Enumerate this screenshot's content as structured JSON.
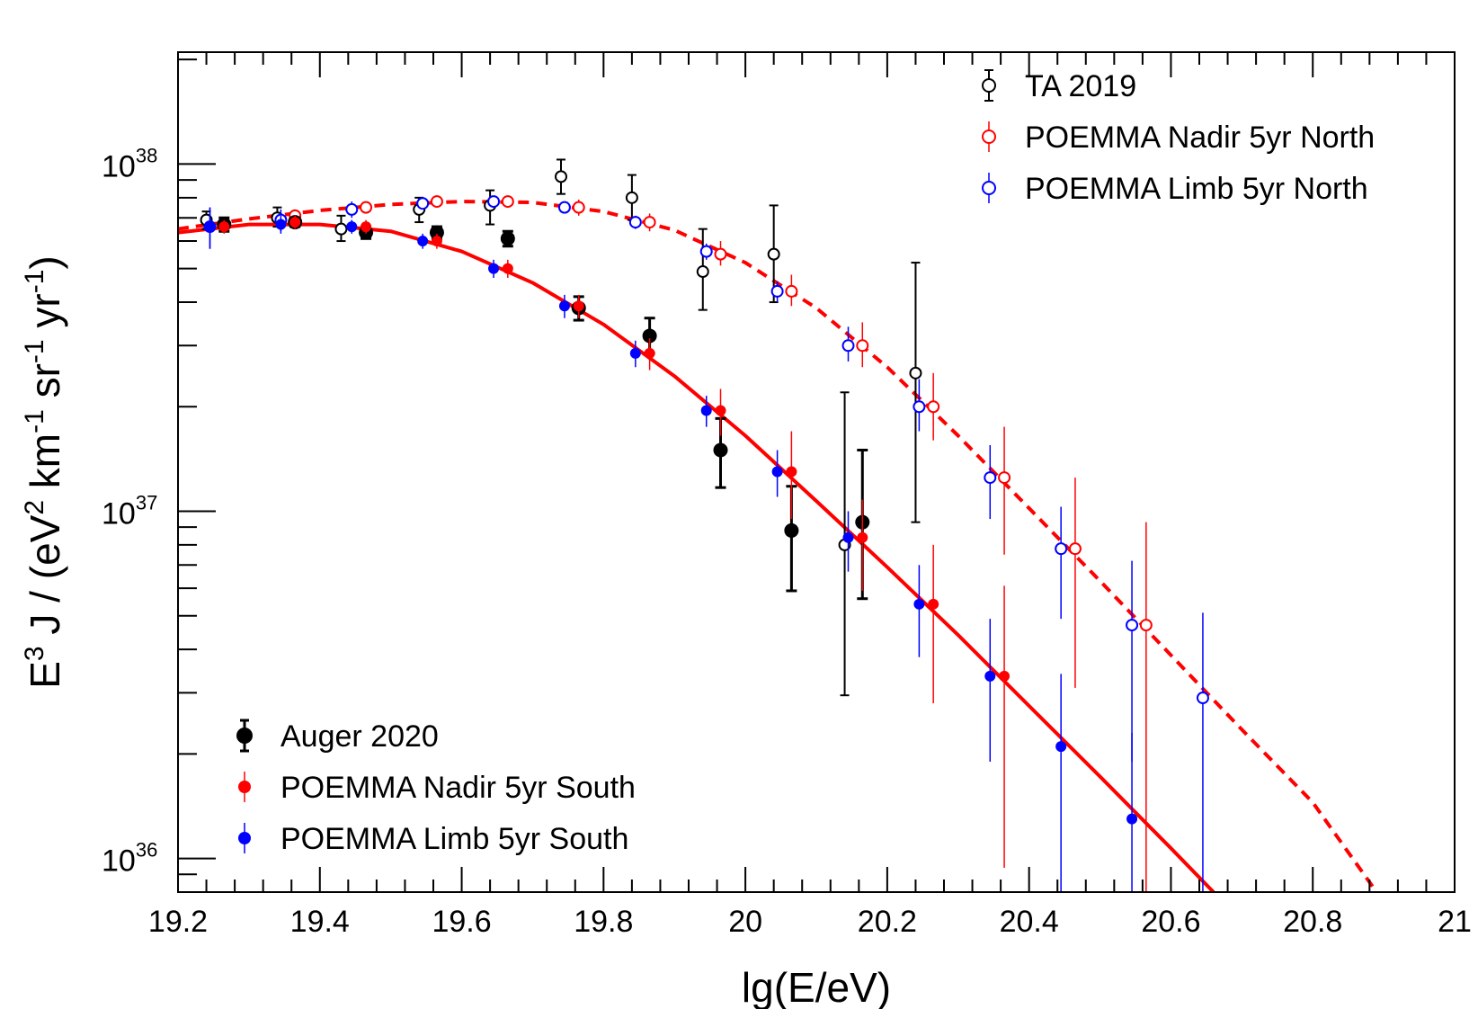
{
  "chart_data": {
    "type": "scatter",
    "title": "",
    "xlabel": "lg(E/eV)",
    "ylabel": {
      "prefix": "E",
      "prefix_sup": "3",
      "middle": " J / (eV",
      "sup1": "2",
      "km": " km",
      "sup2": "-1",
      "sr": " sr",
      "sup3": "-1",
      "yr": " yr",
      "sup4": "-1",
      "close": ")"
    },
    "xlim": [
      19.2,
      21.0
    ],
    "ylim": [
      8e+35,
      2.1e+38
    ],
    "yscale": "log",
    "xticks": [
      {
        "value": 19.2,
        "label": "19.2"
      },
      {
        "value": 19.4,
        "label": "19.4"
      },
      {
        "value": 19.6,
        "label": "19.6"
      },
      {
        "value": 19.8,
        "label": "19.8"
      },
      {
        "value": 20.0,
        "label": "20"
      },
      {
        "value": 20.2,
        "label": "20.2"
      },
      {
        "value": 20.4,
        "label": "20.4"
      },
      {
        "value": 20.6,
        "label": "20.6"
      },
      {
        "value": 20.8,
        "label": "20.8"
      },
      {
        "value": 21.0,
        "label": "21"
      }
    ],
    "yticks": [
      {
        "value": 1e+36,
        "base": "10",
        "exp": "36"
      },
      {
        "value": 1e+37,
        "base": "10",
        "exp": "37"
      },
      {
        "value": 1e+38,
        "base": "10",
        "exp": "38"
      }
    ],
    "colors": {
      "black": "#000000",
      "red": "#ff0000",
      "blue": "#0000ff"
    },
    "series": [
      {
        "name": "TA 2019",
        "color": "#000000",
        "marker": "open",
        "size": 6,
        "lw": 2,
        "points": [
          {
            "x": 19.24,
            "y": 6.9e+37,
            "lo": 6.5e+37,
            "hi": 7.3e+37
          },
          {
            "x": 19.34,
            "y": 7e+37,
            "lo": 6.6e+37,
            "hi": 7.5e+37
          },
          {
            "x": 19.43,
            "y": 6.5e+37,
            "lo": 6e+37,
            "hi": 7.1e+37
          },
          {
            "x": 19.54,
            "y": 7.4e+37,
            "lo": 6.8e+37,
            "hi": 8e+37
          },
          {
            "x": 19.64,
            "y": 7.6e+37,
            "lo": 6.7e+37,
            "hi": 8.4e+37
          },
          {
            "x": 19.74,
            "y": 9.2e+37,
            "lo": 8.2e+37,
            "hi": 1.03e+38
          },
          {
            "x": 19.84,
            "y": 8e+37,
            "lo": 6.9e+37,
            "hi": 9.3e+37
          },
          {
            "x": 19.94,
            "y": 4.9e+37,
            "lo": 3.8e+37,
            "hi": 6.5e+37
          },
          {
            "x": 20.04,
            "y": 5.5e+37,
            "lo": 4e+37,
            "hi": 7.6e+37
          },
          {
            "x": 20.14,
            "y": 8e+36,
            "lo": 2.95e+36,
            "hi": 2.2e+37
          },
          {
            "x": 20.24,
            "y": 2.5e+37,
            "lo": 9.3e+36,
            "hi": 5.2e+37
          }
        ]
      },
      {
        "name": "POEMMA Nadir 5yr North",
        "color": "#ff0000",
        "marker": "open",
        "size": 6,
        "lw": 1.5,
        "points": [
          {
            "x": 19.265,
            "y": 6.7e+37,
            "lo": 6.4e+37,
            "hi": 7e+37
          },
          {
            "x": 19.365,
            "y": 7.1e+37,
            "lo": 6.8e+37,
            "hi": 7.4e+37
          },
          {
            "x": 19.465,
            "y": 7.5e+37,
            "lo": 7.2e+37,
            "hi": 7.8e+37
          },
          {
            "x": 19.565,
            "y": 7.8e+37,
            "lo": 7.5e+37,
            "hi": 8.1e+37
          },
          {
            "x": 19.665,
            "y": 7.8e+37,
            "lo": 7.5e+37,
            "hi": 8.1e+37
          },
          {
            "x": 19.765,
            "y": 7.5e+37,
            "lo": 7.1e+37,
            "hi": 7.9e+37
          },
          {
            "x": 19.865,
            "y": 6.8e+37,
            "lo": 6.4e+37,
            "hi": 7.2e+37
          },
          {
            "x": 19.965,
            "y": 5.5e+37,
            "lo": 5.1e+37,
            "hi": 6e+37
          },
          {
            "x": 20.065,
            "y": 4.3e+37,
            "lo": 3.9e+37,
            "hi": 4.8e+37
          },
          {
            "x": 20.165,
            "y": 3e+37,
            "lo": 2.6e+37,
            "hi": 3.5e+37
          },
          {
            "x": 20.265,
            "y": 2e+37,
            "lo": 1.6e+37,
            "hi": 2.5e+37
          },
          {
            "x": 20.365,
            "y": 1.25e+37,
            "lo": 7.5e+36,
            "hi": 1.75e+37
          },
          {
            "x": 20.465,
            "y": 7.8e+36,
            "lo": 3.1e+36,
            "hi": 1.25e+37
          },
          {
            "x": 20.565,
            "y": 4.7e+36,
            "lo": 8e+35,
            "hi": 9.3e+36
          }
        ]
      },
      {
        "name": "POEMMA Limb 5yr North",
        "color": "#0000ff",
        "marker": "open",
        "size": 6,
        "lw": 1.5,
        "points": [
          {
            "x": 19.245,
            "y": 6.6e+37,
            "lo": 5.7e+37,
            "hi": 7.5e+37
          },
          {
            "x": 19.345,
            "y": 6.9e+37,
            "lo": 6.4e+37,
            "hi": 7.4e+37
          },
          {
            "x": 19.445,
            "y": 7.4e+37,
            "lo": 7e+37,
            "hi": 7.8e+37
          },
          {
            "x": 19.545,
            "y": 7.7e+37,
            "lo": 7.4e+37,
            "hi": 8e+37
          },
          {
            "x": 19.645,
            "y": 7.8e+37,
            "lo": 7.5e+37,
            "hi": 8.1e+37
          },
          {
            "x": 19.745,
            "y": 7.5e+37,
            "lo": 7.2e+37,
            "hi": 7.8e+37
          },
          {
            "x": 19.845,
            "y": 6.8e+37,
            "lo": 6.5e+37,
            "hi": 7.1e+37
          },
          {
            "x": 19.945,
            "y": 5.6e+37,
            "lo": 5.3e+37,
            "hi": 5.9e+37
          },
          {
            "x": 20.045,
            "y": 4.3e+37,
            "lo": 4e+37,
            "hi": 4.6e+37
          },
          {
            "x": 20.145,
            "y": 3e+37,
            "lo": 2.7e+37,
            "hi": 3.4e+37
          },
          {
            "x": 20.245,
            "y": 2e+37,
            "lo": 1.7e+37,
            "hi": 2.4e+37
          },
          {
            "x": 20.345,
            "y": 1.25e+37,
            "lo": 9.5e+36,
            "hi": 1.55e+37
          },
          {
            "x": 20.445,
            "y": 7.8e+36,
            "lo": 4.9e+36,
            "hi": 1.03e+37
          },
          {
            "x": 20.545,
            "y": 4.7e+36,
            "lo": 1.9e+36,
            "hi": 7.2e+36
          },
          {
            "x": 20.645,
            "y": 2.9e+36,
            "lo": 8e+35,
            "hi": 5.1e+36
          }
        ]
      },
      {
        "name": "Auger 2020",
        "color": "#000000",
        "marker": "filled",
        "size": 8,
        "lw": 3,
        "points": [
          {
            "x": 19.265,
            "y": 6.7e+37,
            "lo": 6.4e+37,
            "hi": 7e+37
          },
          {
            "x": 19.365,
            "y": 6.8e+37,
            "lo": 6.6e+37,
            "hi": 7e+37
          },
          {
            "x": 19.465,
            "y": 6.35e+37,
            "lo": 6.1e+37,
            "hi": 6.6e+37
          },
          {
            "x": 19.565,
            "y": 6.35e+37,
            "lo": 6.1e+37,
            "hi": 6.6e+37
          },
          {
            "x": 19.665,
            "y": 6.1e+37,
            "lo": 5.8e+37,
            "hi": 6.4e+37
          },
          {
            "x": 19.765,
            "y": 3.85e+37,
            "lo": 3.55e+37,
            "hi": 4.15e+37
          },
          {
            "x": 19.865,
            "y": 3.2e+37,
            "lo": 2.85e+37,
            "hi": 3.6e+37
          },
          {
            "x": 19.965,
            "y": 1.5e+37,
            "lo": 1.17e+37,
            "hi": 1.85e+37
          },
          {
            "x": 20.065,
            "y": 8.8e+36,
            "lo": 5.9e+36,
            "hi": 1.18e+37
          },
          {
            "x": 20.165,
            "y": 9.3e+36,
            "lo": 5.6e+36,
            "hi": 1.5e+37
          }
        ]
      },
      {
        "name": "POEMMA Nadir 5yr South",
        "color": "#ff0000",
        "marker": "filled",
        "size": 6,
        "lw": 1.5,
        "points": [
          {
            "x": 19.265,
            "y": 6.6e+37,
            "lo": 6.3e+37,
            "hi": 6.9e+37
          },
          {
            "x": 19.365,
            "y": 6.8e+37,
            "lo": 6.5e+37,
            "hi": 7.1e+37
          },
          {
            "x": 19.465,
            "y": 6.6e+37,
            "lo": 6.3e+37,
            "hi": 6.9e+37
          },
          {
            "x": 19.565,
            "y": 6e+37,
            "lo": 5.7e+37,
            "hi": 6.3e+37
          },
          {
            "x": 19.665,
            "y": 5e+37,
            "lo": 4.7e+37,
            "hi": 5.3e+37
          },
          {
            "x": 19.765,
            "y": 3.9e+37,
            "lo": 3.6e+37,
            "hi": 4.2e+37
          },
          {
            "x": 19.865,
            "y": 2.85e+37,
            "lo": 2.55e+37,
            "hi": 3.15e+37
          },
          {
            "x": 19.965,
            "y": 1.95e+37,
            "lo": 1.65e+37,
            "hi": 2.25e+37
          },
          {
            "x": 20.065,
            "y": 1.3e+37,
            "lo": 9.5e+36,
            "hi": 1.7e+37
          },
          {
            "x": 20.165,
            "y": 8.4e+36,
            "lo": 5.9e+36,
            "hi": 1.08e+37
          },
          {
            "x": 20.265,
            "y": 5.4e+36,
            "lo": 2.8e+36,
            "hi": 8e+36
          },
          {
            "x": 20.365,
            "y": 3.35e+36,
            "lo": 9.4e+35,
            "hi": 6.1e+36
          }
        ]
      },
      {
        "name": "POEMMA Limb 5yr South",
        "color": "#0000ff",
        "marker": "filled",
        "size": 6,
        "lw": 1.5,
        "points": [
          {
            "x": 19.245,
            "y": 6.6e+37,
            "lo": 5.7e+37,
            "hi": 7.5e+37
          },
          {
            "x": 19.345,
            "y": 6.7e+37,
            "lo": 6.3e+37,
            "hi": 7.1e+37
          },
          {
            "x": 19.445,
            "y": 6.6e+37,
            "lo": 6.3e+37,
            "hi": 6.9e+37
          },
          {
            "x": 19.545,
            "y": 6e+37,
            "lo": 5.7e+37,
            "hi": 6.3e+37
          },
          {
            "x": 19.645,
            "y": 5e+37,
            "lo": 4.7e+37,
            "hi": 5.3e+37
          },
          {
            "x": 19.745,
            "y": 3.9e+37,
            "lo": 3.6e+37,
            "hi": 4.2e+37
          },
          {
            "x": 19.845,
            "y": 2.85e+37,
            "lo": 2.6e+37,
            "hi": 3.1e+37
          },
          {
            "x": 19.945,
            "y": 1.95e+37,
            "lo": 1.75e+37,
            "hi": 2.15e+37
          },
          {
            "x": 20.045,
            "y": 1.3e+37,
            "lo": 1.1e+37,
            "hi": 1.5e+37
          },
          {
            "x": 20.145,
            "y": 8.4e+36,
            "lo": 6.7e+36,
            "hi": 1e+37
          },
          {
            "x": 20.245,
            "y": 5.4e+36,
            "lo": 3.8e+36,
            "hi": 7e+36
          },
          {
            "x": 20.345,
            "y": 3.35e+36,
            "lo": 1.9e+36,
            "hi": 4.9e+36
          },
          {
            "x": 20.445,
            "y": 2.1e+36,
            "lo": 8e+35,
            "hi": 3.4e+36
          },
          {
            "x": 20.545,
            "y": 1.3e+36,
            "lo": 8e+35,
            "hi": 2.3e+36
          }
        ]
      }
    ],
    "curves": [
      {
        "name": "South fit",
        "color": "#ff0000",
        "style": "solid",
        "points": [
          [
            19.2,
            6.35e+37
          ],
          [
            19.3,
            6.7e+37
          ],
          [
            19.4,
            6.7e+37
          ],
          [
            19.5,
            6.4e+37
          ],
          [
            19.6,
            5.6e+37
          ],
          [
            19.7,
            4.55e+37
          ],
          [
            19.8,
            3.45e+37
          ],
          [
            19.9,
            2.45e+37
          ],
          [
            20.0,
            1.65e+37
          ],
          [
            20.1,
            1.07e+37
          ],
          [
            20.2,
            6.9e+36
          ],
          [
            20.3,
            4.4e+36
          ],
          [
            20.4,
            2.75e+36
          ],
          [
            20.5,
            1.72e+36
          ],
          [
            20.6,
            1.07e+36
          ],
          [
            20.66,
            8e+35
          ]
        ]
      },
      {
        "name": "North fit",
        "color": "#ff0000",
        "style": "dashed",
        "points": [
          [
            19.2,
            6.5e+37
          ],
          [
            19.3,
            6.95e+37
          ],
          [
            19.4,
            7.35e+37
          ],
          [
            19.5,
            7.65e+37
          ],
          [
            19.6,
            7.8e+37
          ],
          [
            19.7,
            7.75e+37
          ],
          [
            19.8,
            7.3e+37
          ],
          [
            19.9,
            6.45e+37
          ],
          [
            20.0,
            5.2e+37
          ],
          [
            20.1,
            3.85e+37
          ],
          [
            20.2,
            2.6e+37
          ],
          [
            20.3,
            1.65e+37
          ],
          [
            20.4,
            1.02e+37
          ],
          [
            20.5,
            6.3e+36
          ],
          [
            20.6,
            3.85e+36
          ],
          [
            20.7,
            2.35e+36
          ],
          [
            20.8,
            1.45e+36
          ],
          [
            20.89,
            8e+35
          ]
        ]
      }
    ],
    "legend_top_right": [
      {
        "label": "TA 2019",
        "series": 0
      },
      {
        "label": "POEMMA Nadir 5yr North",
        "series": 1
      },
      {
        "label": "POEMMA Limb 5yr North",
        "series": 2
      }
    ],
    "legend_bottom_left": [
      {
        "label": "Auger 2020",
        "series": 3
      },
      {
        "label": "POEMMA Nadir 5yr South",
        "series": 4
      },
      {
        "label": "POEMMA Limb 5yr South",
        "series": 5
      }
    ]
  }
}
